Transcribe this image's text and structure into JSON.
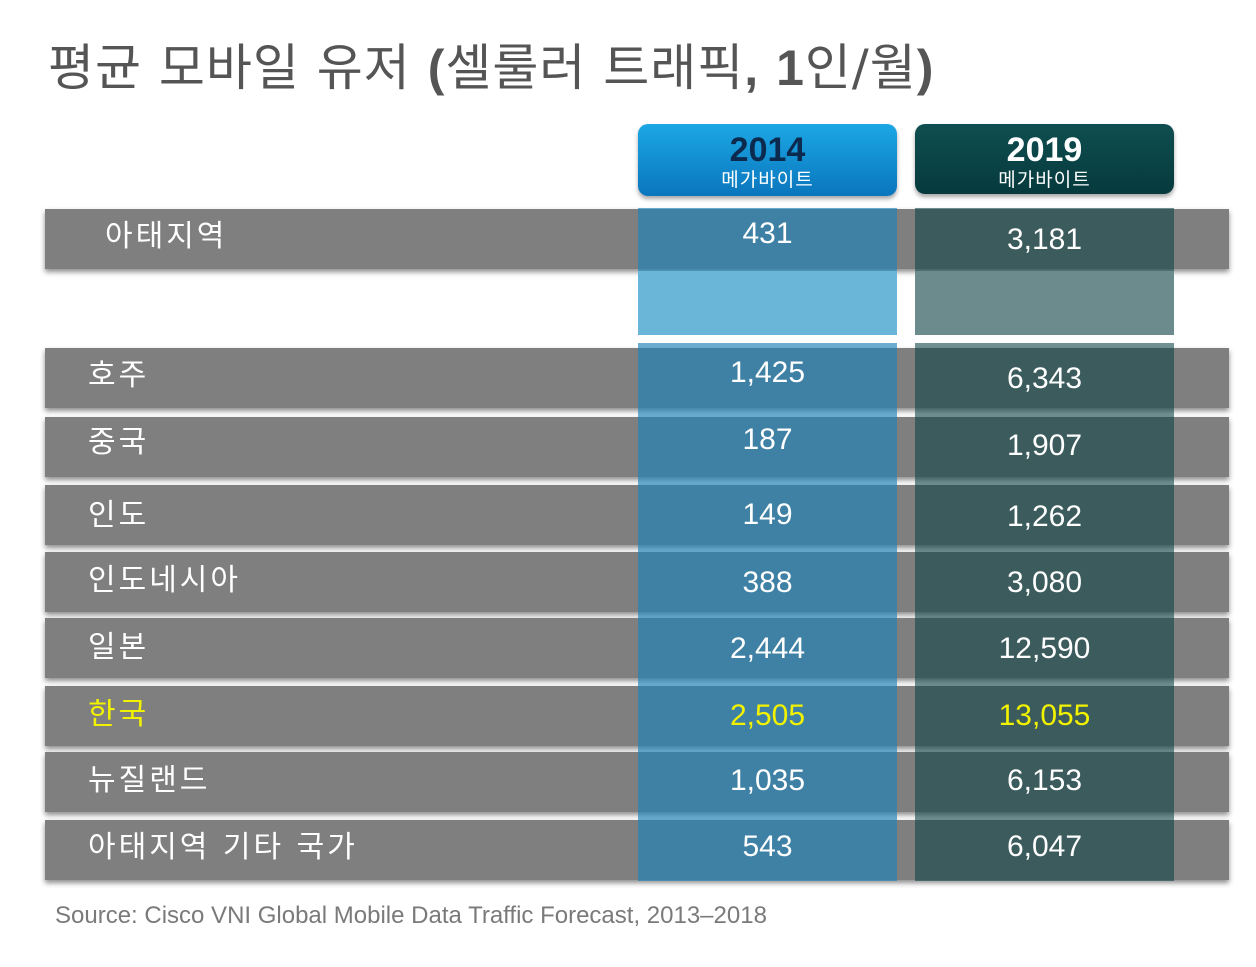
{
  "title": {
    "main": "평균 모바일 유저",
    "paren_open": "(",
    "paren_text": "셀룰러 트래픽",
    "comma": ",",
    "per_prefix": "1",
    "per_suffix": "인/월",
    "paren_close": ")"
  },
  "columns": [
    {
      "year": "2014",
      "unit": "메가바이트",
      "color": "#1296d6"
    },
    {
      "year": "2019",
      "unit": "메가바이트",
      "color": "#0b4547"
    }
  ],
  "highlight_color": "#f2f200",
  "chart_data": {
    "type": "table",
    "columns": [
      "2014",
      "2019"
    ],
    "unit": "메가바이트",
    "rows": [
      {
        "label": "아태지역",
        "values": [
          "431",
          "3,181"
        ],
        "highlight": false
      },
      {
        "label": "호주",
        "values": [
          "1,425",
          "6,343"
        ],
        "highlight": false
      },
      {
        "label": "중국",
        "values": [
          "187",
          "1,907"
        ],
        "highlight": false
      },
      {
        "label": "인도",
        "values": [
          "149",
          "1,262"
        ],
        "highlight": false
      },
      {
        "label": "인도네시아",
        "values": [
          "388",
          "3,080"
        ],
        "highlight": false
      },
      {
        "label": "일본",
        "values": [
          "2,444",
          "12,590"
        ],
        "highlight": false
      },
      {
        "label": "한국",
        "values": [
          "2,505",
          "13,055"
        ],
        "highlight": true
      },
      {
        "label": "뉴질랜드",
        "values": [
          "1,035",
          "6,153"
        ],
        "highlight": false
      },
      {
        "label": "아태지역 기타 국가",
        "values": [
          "543",
          "6,047"
        ],
        "highlight": false
      }
    ]
  },
  "source": "Source: Cisco VNI Global Mobile Data Traffic Forecast, 2013–2018"
}
